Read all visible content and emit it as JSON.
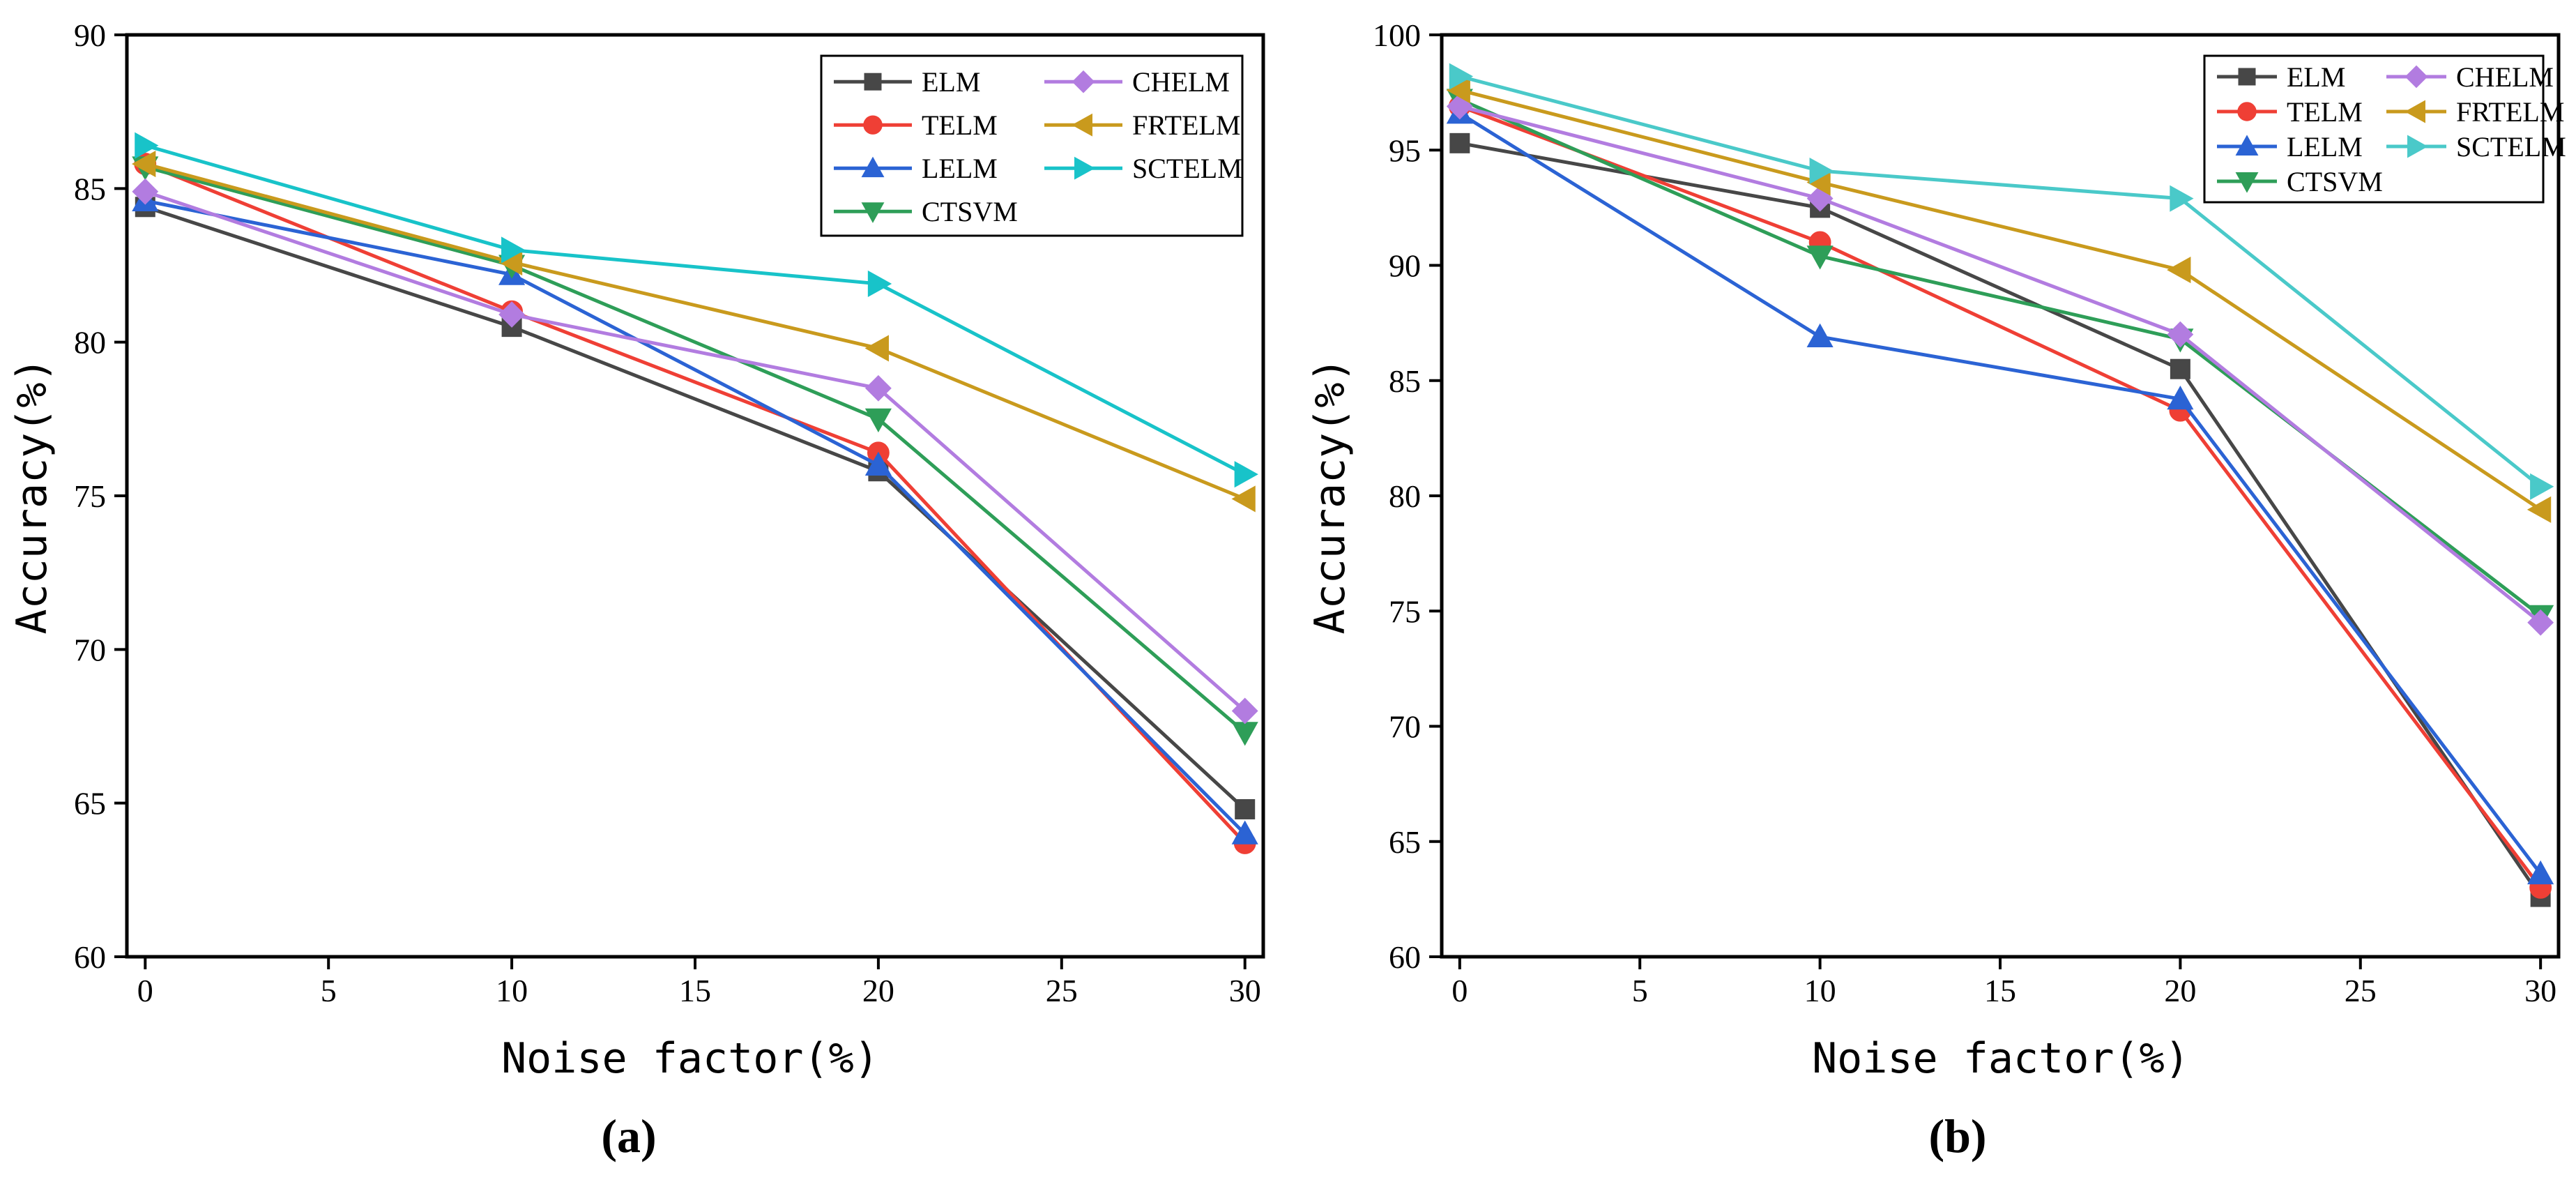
{
  "chart_data": [
    {
      "type": "line",
      "panel_label": "(a)",
      "xlabel": "Noise  factor(%)",
      "ylabel": "Accuracy(%)",
      "xlim": [
        -0.5,
        30.5
      ],
      "ylim": [
        60,
        90
      ],
      "x_ticks": [
        0,
        5,
        10,
        15,
        20,
        25,
        30
      ],
      "y_ticks": [
        60,
        65,
        70,
        75,
        80,
        85,
        90
      ],
      "x": [
        0,
        10,
        20,
        30
      ],
      "legend_position": "top-right",
      "series": [
        {
          "name": "ELM",
          "color": "#474747",
          "marker": "square",
          "values": [
            84.4,
            80.5,
            75.8,
            64.8
          ]
        },
        {
          "name": "TELM",
          "color": "#ef3f35",
          "marker": "circle",
          "values": [
            85.8,
            81.0,
            76.4,
            63.7
          ]
        },
        {
          "name": "LELM",
          "color": "#2b63d4",
          "marker": "triangle-up",
          "values": [
            84.6,
            82.2,
            76.0,
            64.0
          ]
        },
        {
          "name": "CTSVM",
          "color": "#2e9e58",
          "marker": "triangle-down",
          "values": [
            85.7,
            82.5,
            77.5,
            67.3
          ]
        },
        {
          "name": "CHELM",
          "color": "#b27ce0",
          "marker": "diamond",
          "values": [
            84.9,
            80.9,
            78.5,
            68.0
          ]
        },
        {
          "name": "FRTELM",
          "color": "#c99a1d",
          "marker": "triangle-left",
          "values": [
            85.8,
            82.6,
            79.8,
            74.9
          ]
        },
        {
          "name": "SCTELM",
          "color": "#18c3c9",
          "marker": "triangle-right",
          "values": [
            86.4,
            83.0,
            81.9,
            75.7
          ]
        }
      ]
    },
    {
      "type": "line",
      "panel_label": "(b)",
      "xlabel": "Noise  factor(%)",
      "ylabel": "Accuracy(%)",
      "xlim": [
        -0.5,
        30.5
      ],
      "ylim": [
        60,
        100
      ],
      "x_ticks": [
        0,
        5,
        10,
        15,
        20,
        25,
        30
      ],
      "y_ticks": [
        60,
        65,
        70,
        75,
        80,
        85,
        90,
        95,
        100
      ],
      "x": [
        0,
        10,
        20,
        30
      ],
      "legend_position": "top-right",
      "series": [
        {
          "name": "ELM",
          "color": "#474747",
          "marker": "square",
          "values": [
            95.3,
            92.5,
            85.5,
            62.6
          ]
        },
        {
          "name": "TELM",
          "color": "#ef3f35",
          "marker": "circle",
          "values": [
            96.9,
            91.0,
            83.7,
            63.0
          ]
        },
        {
          "name": "LELM",
          "color": "#2b63d4",
          "marker": "triangle-up",
          "values": [
            96.6,
            86.9,
            84.2,
            63.6
          ]
        },
        {
          "name": "CTSVM",
          "color": "#2e9e58",
          "marker": "triangle-down",
          "values": [
            97.2,
            90.4,
            86.8,
            74.8
          ]
        },
        {
          "name": "CHELM",
          "color": "#b27ce0",
          "marker": "diamond",
          "values": [
            96.9,
            92.9,
            87.0,
            74.5
          ]
        },
        {
          "name": "FRTELM",
          "color": "#c99a1d",
          "marker": "triangle-left",
          "values": [
            97.6,
            93.6,
            89.8,
            79.4
          ]
        },
        {
          "name": "SCTELM",
          "color": "#4ac9c9",
          "marker": "triangle-right",
          "values": [
            98.2,
            94.1,
            92.9,
            80.4
          ]
        }
      ]
    }
  ]
}
